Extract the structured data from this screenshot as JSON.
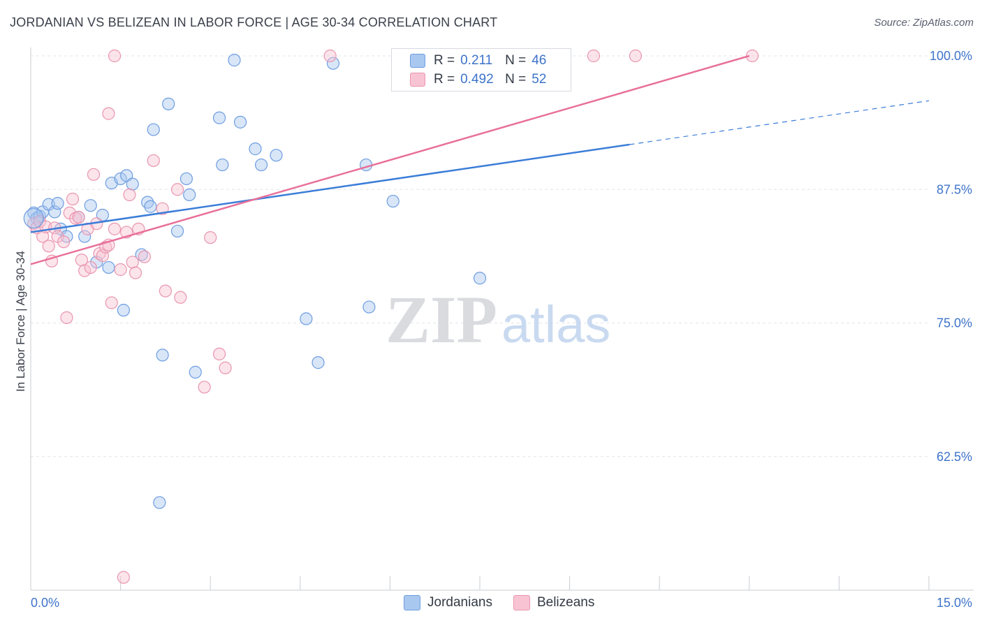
{
  "title": "JORDANIAN VS BELIZEAN IN LABOR FORCE | AGE 30-34 CORRELATION CHART",
  "source": "Source: ZipAtlas.com",
  "watermark": {
    "zip": "ZIP",
    "atlas": "atlas"
  },
  "legend": {
    "r_label": "R =",
    "n_label": "N =",
    "rows": [
      {
        "r": "0.211",
        "n": "46",
        "color": "#a9c8f0",
        "border": "#6e9de0"
      },
      {
        "r": "0.492",
        "n": "52",
        "color": "#f8c4d3",
        "border": "#e995b0"
      }
    ]
  },
  "bottom_legend": [
    "Jordanians",
    "Belizeans"
  ],
  "chart_data": {
    "type": "scatter",
    "title": "JORDANIAN VS BELIZEAN IN LABOR FORCE | AGE 30-34 CORRELATION CHART",
    "xlabel": "",
    "ylabel": "In Labor Force | Age 30-34",
    "xlim": [
      0,
      15
    ],
    "ylim": [
      50,
      100
    ],
    "x_tick_labels": [
      "0.0%",
      "15.0%"
    ],
    "y_ticks": [
      62.5,
      75.0,
      87.5,
      100.0
    ],
    "y_tick_labels": [
      "62.5%",
      "75.0%",
      "87.5%",
      "100.0%"
    ],
    "grid": "horizontal dashed",
    "colors": {
      "Jordanians": "#3b7dd8",
      "Belizeans": "#e8709a"
    },
    "series": [
      {
        "name": "Jordanians",
        "points": [
          [
            0.05,
            85.3
          ],
          [
            0.1,
            84.8
          ],
          [
            0.15,
            85.0
          ],
          [
            0.2,
            85.4
          ],
          [
            0.3,
            86.1
          ],
          [
            0.4,
            85.4
          ],
          [
            0.45,
            86.2
          ],
          [
            0.5,
            83.8
          ],
          [
            0.6,
            83.1
          ],
          [
            0.8,
            84.9
          ],
          [
            0.9,
            83.1
          ],
          [
            1.0,
            86.0
          ],
          [
            1.1,
            80.7
          ],
          [
            1.2,
            85.1
          ],
          [
            1.3,
            80.2
          ],
          [
            1.35,
            88.1
          ],
          [
            1.5,
            88.5
          ],
          [
            1.55,
            76.2
          ],
          [
            1.6,
            88.8
          ],
          [
            1.7,
            88.0
          ],
          [
            1.85,
            81.4
          ],
          [
            1.95,
            86.3
          ],
          [
            2.0,
            85.9
          ],
          [
            2.05,
            93.1
          ],
          [
            2.15,
            58.2
          ],
          [
            2.2,
            72.0
          ],
          [
            2.3,
            95.5
          ],
          [
            2.45,
            83.6
          ],
          [
            2.6,
            88.5
          ],
          [
            2.65,
            87.0
          ],
          [
            2.75,
            70.4
          ],
          [
            3.15,
            94.2
          ],
          [
            3.2,
            89.8
          ],
          [
            3.4,
            99.6
          ],
          [
            3.5,
            93.8
          ],
          [
            3.75,
            91.3
          ],
          [
            3.85,
            89.8
          ],
          [
            4.1,
            90.7
          ],
          [
            4.6,
            75.4
          ],
          [
            4.8,
            71.3
          ],
          [
            5.05,
            99.3
          ],
          [
            5.6,
            89.8
          ],
          [
            5.65,
            76.5
          ],
          [
            6.05,
            86.4
          ],
          [
            7.5,
            79.2
          ],
          [
            7.4,
            100.0
          ]
        ]
      },
      {
        "name": "Belizeans",
        "points": [
          [
            0.05,
            84.3
          ],
          [
            0.1,
            83.9
          ],
          [
            0.15,
            84.5
          ],
          [
            0.2,
            83.1
          ],
          [
            0.25,
            84.0
          ],
          [
            0.3,
            82.2
          ],
          [
            0.35,
            80.8
          ],
          [
            0.4,
            83.9
          ],
          [
            0.45,
            83.1
          ],
          [
            0.55,
            82.6
          ],
          [
            0.6,
            75.5
          ],
          [
            0.65,
            85.3
          ],
          [
            0.7,
            86.6
          ],
          [
            0.75,
            84.8
          ],
          [
            0.8,
            84.9
          ],
          [
            0.85,
            80.9
          ],
          [
            0.9,
            79.9
          ],
          [
            0.95,
            83.8
          ],
          [
            1.0,
            80.2
          ],
          [
            1.05,
            88.9
          ],
          [
            1.1,
            84.3
          ],
          [
            1.15,
            81.5
          ],
          [
            1.2,
            81.3
          ],
          [
            1.25,
            82.1
          ],
          [
            1.3,
            82.3
          ],
          [
            1.35,
            76.9
          ],
          [
            1.4,
            83.8
          ],
          [
            1.5,
            80.0
          ],
          [
            1.55,
            51.2
          ],
          [
            1.65,
            87.0
          ],
          [
            1.7,
            80.7
          ],
          [
            1.75,
            79.7
          ],
          [
            1.8,
            83.8
          ],
          [
            1.9,
            81.2
          ],
          [
            2.05,
            90.2
          ],
          [
            2.2,
            85.7
          ],
          [
            2.25,
            78.0
          ],
          [
            2.45,
            87.5
          ],
          [
            2.5,
            77.4
          ],
          [
            2.9,
            69.0
          ],
          [
            3.0,
            83.0
          ],
          [
            3.15,
            72.1
          ],
          [
            3.25,
            70.8
          ],
          [
            1.4,
            100.0
          ],
          [
            1.3,
            94.6
          ],
          [
            5.0,
            100.0
          ],
          [
            7.4,
            100.0
          ],
          [
            8.6,
            100.0
          ],
          [
            9.4,
            100.0
          ],
          [
            10.1,
            100.0
          ],
          [
            12.05,
            100.0
          ],
          [
            1.6,
            83.5
          ]
        ]
      }
    ],
    "trend_lines": [
      {
        "series": "Jordanians",
        "x": [
          0.0,
          10.0
        ],
        "y": [
          83.5,
          91.7
        ],
        "dashed_extension": {
          "x": [
            10.0,
            15.0
          ],
          "y": [
            91.7,
            95.8
          ]
        }
      },
      {
        "series": "Belizeans",
        "x": [
          0.0,
          12.0
        ],
        "y": [
          80.5,
          100.0
        ]
      }
    ]
  }
}
